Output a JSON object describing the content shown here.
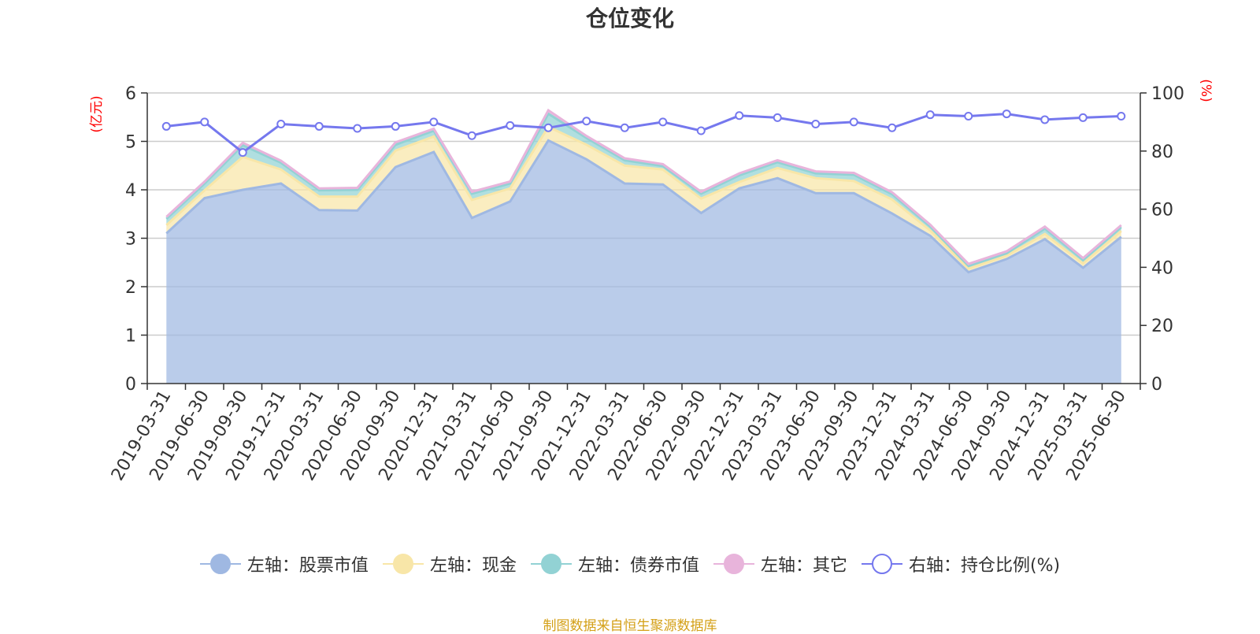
{
  "footer": "制图数据来自恒生聚源数据库",
  "colors": {
    "stock": "#9fb8e2",
    "cash": "#f8e6a8",
    "bond": "#92d2d4",
    "other": "#e8b4db",
    "ratio": "#7578ee",
    "axis_title": "#ff0000",
    "footer": "#d4a017"
  },
  "chart_data": {
    "type": "area",
    "title": "仓位变化",
    "y_left_label": "(亿元)",
    "y_right_label": "(%)",
    "y_left_range": [
      0,
      6
    ],
    "y_left_ticks": [
      "0",
      "1",
      "2",
      "3",
      "4",
      "5",
      "6"
    ],
    "y_right_range": [
      0,
      100
    ],
    "y_right_ticks": [
      "0",
      "20",
      "40",
      "60",
      "80",
      "100"
    ],
    "grid": true,
    "legend_position": "bottom",
    "categories": [
      "2019-03-31",
      "2019-06-30",
      "2019-09-30",
      "2019-12-31",
      "2020-03-31",
      "2020-06-30",
      "2020-09-30",
      "2020-12-31",
      "2021-03-31",
      "2021-06-30",
      "2021-09-30",
      "2021-12-31",
      "2022-03-31",
      "2022-06-30",
      "2022-09-30",
      "2022-12-31",
      "2023-03-31",
      "2023-06-30",
      "2023-09-30",
      "2023-12-31",
      "2024-03-31",
      "2024-06-30",
      "2024-09-30",
      "2024-12-31",
      "2025-03-31",
      "2025-06-30"
    ],
    "series": [
      {
        "name": "左轴：股票市值",
        "axis": "left",
        "stack": true,
        "values": [
          3.1,
          3.83,
          4.0,
          4.13,
          3.58,
          3.57,
          4.47,
          4.78,
          3.42,
          3.76,
          5.02,
          4.63,
          4.13,
          4.11,
          3.52,
          4.03,
          4.24,
          3.93,
          3.93,
          3.51,
          3.05,
          2.3,
          2.57,
          2.98,
          2.39,
          3.03
        ]
      },
      {
        "name": "左轴：现金",
        "axis": "left",
        "stack": true,
        "values": [
          0.17,
          0.16,
          0.68,
          0.29,
          0.28,
          0.29,
          0.34,
          0.32,
          0.37,
          0.27,
          0.28,
          0.3,
          0.37,
          0.31,
          0.3,
          0.13,
          0.21,
          0.31,
          0.25,
          0.29,
          0.11,
          0.07,
          0.07,
          0.11,
          0.09,
          0.12
        ]
      },
      {
        "name": "左轴：债券市值",
        "axis": "left",
        "stack": true,
        "values": [
          0.13,
          0.14,
          0.24,
          0.14,
          0.13,
          0.14,
          0.12,
          0.12,
          0.13,
          0.1,
          0.27,
          0.14,
          0.11,
          0.07,
          0.1,
          0.14,
          0.12,
          0.1,
          0.13,
          0.11,
          0.08,
          0.06,
          0.05,
          0.11,
          0.07,
          0.08
        ]
      },
      {
        "name": "左轴：其它",
        "axis": "left",
        "stack": true,
        "values": [
          0.04,
          0.04,
          0.05,
          0.04,
          0.04,
          0.04,
          0.05,
          0.04,
          0.04,
          0.04,
          0.07,
          0.04,
          0.04,
          0.04,
          0.04,
          0.04,
          0.04,
          0.04,
          0.04,
          0.04,
          0.04,
          0.04,
          0.04,
          0.04,
          0.04,
          0.04
        ]
      },
      {
        "name": "右轴：持仓比例(%)",
        "axis": "right",
        "values": [
          88.5,
          90.0,
          79.5,
          89.3,
          88.5,
          87.8,
          88.5,
          90.0,
          85.3,
          88.8,
          88.0,
          90.3,
          88.0,
          90.0,
          87.0,
          92.2,
          91.5,
          89.3,
          90.0,
          88.0,
          92.5,
          92.0,
          92.8,
          90.8,
          91.5,
          92.0
        ]
      }
    ]
  }
}
